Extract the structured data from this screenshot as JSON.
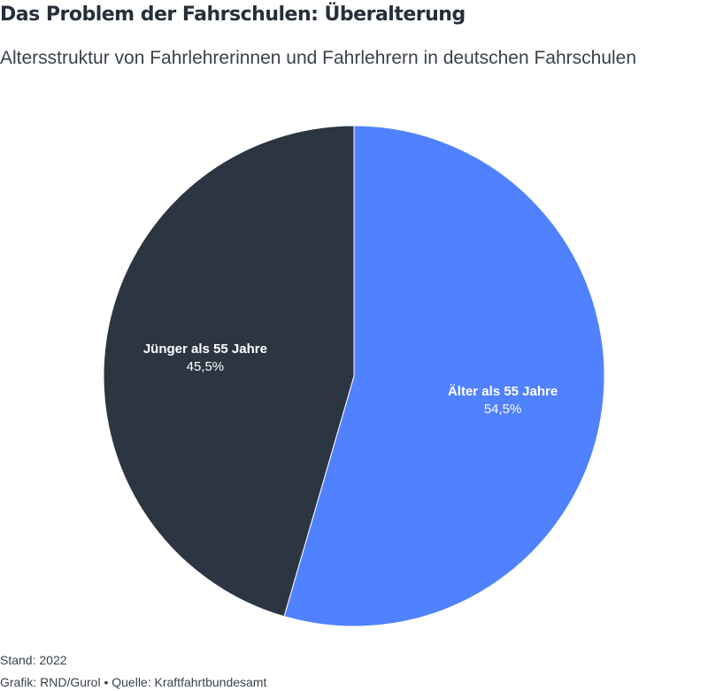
{
  "header": {
    "title": "Das Problem der Fahrschulen: Überalterung",
    "subtitle": "Altersstruktur von Fahrlehrerinnen und Fahrlehrern in deutschen Fahrschulen"
  },
  "chart_data": {
    "type": "pie",
    "title": "Das Problem der Fahrschulen: Überalterung",
    "subtitle": "Altersstruktur von Fahrlehrerinnen und Fahrlehrern in deutschen Fahrschulen",
    "unit": "%",
    "slices": [
      {
        "label": "Älter als 55 Jahre",
        "value": 54.5,
        "value_label": "54,5%",
        "color": "#5082ff"
      },
      {
        "label": "Jünger als 55 Jahre",
        "value": 45.5,
        "value_label": "45,5%",
        "color": "#2b3642"
      }
    ],
    "start": "12 o'clock",
    "direction": "clockwise",
    "legend": "none (labels inside slices)"
  },
  "footer": {
    "stand": "Stand: 2022",
    "credit": "Grafik: RND/Gurol • Quelle: Kraftfahrtbundesamt"
  }
}
